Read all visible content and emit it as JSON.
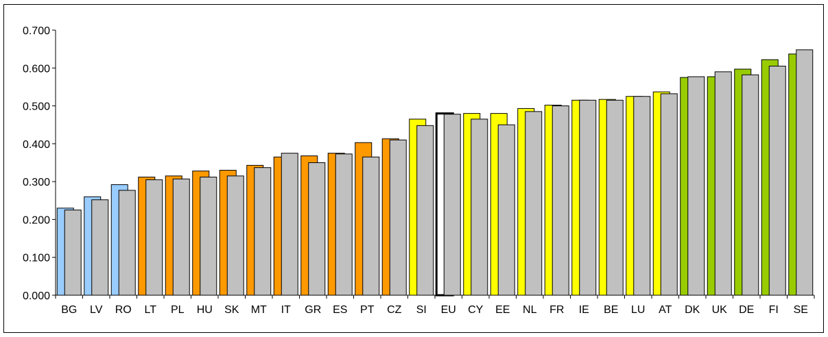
{
  "chart_data": {
    "type": "bar",
    "title": "",
    "xlabel": "",
    "ylabel": "",
    "ylim": [
      0,
      0.7
    ],
    "yticks": [
      "0.000",
      "0.100",
      "0.200",
      "0.300",
      "0.400",
      "0.500",
      "0.600",
      "0.700"
    ],
    "grid": false,
    "legend": "none",
    "categories": [
      "BG",
      "LV",
      "RO",
      "LT",
      "PL",
      "HU",
      "SK",
      "MT",
      "IT",
      "GR",
      "ES",
      "PT",
      "CZ",
      "SI",
      "EU",
      "CY",
      "EE",
      "NL",
      "FR",
      "IE",
      "BE",
      "LU",
      "AT",
      "DK",
      "UK",
      "DE",
      "FI",
      "SE"
    ],
    "series": [
      {
        "values": [
          0.23,
          0.26,
          0.292,
          0.312,
          0.315,
          0.328,
          0.33,
          0.343,
          0.365,
          0.368,
          0.375,
          0.403,
          0.413,
          0.465,
          0.48,
          0.48,
          0.48,
          0.493,
          0.502,
          0.515,
          0.517,
          0.525,
          0.537,
          0.575,
          0.577,
          0.597,
          0.622,
          0.637
        ],
        "colors": [
          "#99ccff",
          "#99ccff",
          "#99ccff",
          "#ff9900",
          "#ff9900",
          "#ff9900",
          "#ff9900",
          "#ff9900",
          "#ff9900",
          "#ff9900",
          "#ff9900",
          "#ff9900",
          "#ff9900",
          "#ffff00",
          "#ffffff",
          "#ffff00",
          "#ffff00",
          "#ffff00",
          "#ffff00",
          "#ffff00",
          "#ffff00",
          "#ffff00",
          "#ffff00",
          "#99cc00",
          "#99cc00",
          "#99cc00",
          "#99cc00",
          "#99cc00"
        ]
      },
      {
        "values": [
          0.225,
          0.252,
          0.277,
          0.305,
          0.307,
          0.312,
          0.315,
          0.337,
          0.375,
          0.35,
          0.373,
          0.365,
          0.41,
          0.448,
          0.478,
          0.465,
          0.45,
          0.485,
          0.5,
          0.515,
          0.515,
          0.525,
          0.532,
          0.577,
          0.59,
          0.582,
          0.605,
          0.648
        ],
        "color": "#c0c0c0"
      }
    ]
  }
}
